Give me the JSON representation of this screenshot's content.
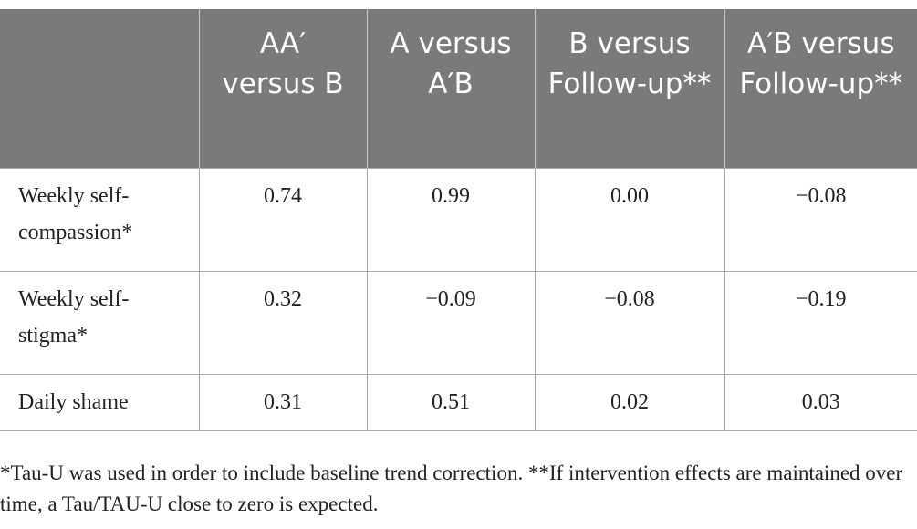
{
  "table": {
    "headers": [
      "",
      "AA′ versus B",
      "A versus A′B",
      "B versus Follow-up**",
      "A′B versus Follow-up**"
    ],
    "rows": [
      {
        "label": "Weekly self-compassion*",
        "values": [
          "0.74",
          "0.99",
          "0.00",
          "−0.08"
        ]
      },
      {
        "label": "Weekly self-stigma*",
        "values": [
          "0.32",
          "−0.09",
          "−0.08",
          "−0.19"
        ]
      },
      {
        "label": "Daily shame",
        "values": [
          "0.31",
          "0.51",
          "0.02",
          "0.03"
        ]
      }
    ]
  },
  "footnote": "*Tau-U was used in order to include baseline trend correction. **If intervention effects are maintained over time, a Tau/TAU-U close to zero is expected."
}
